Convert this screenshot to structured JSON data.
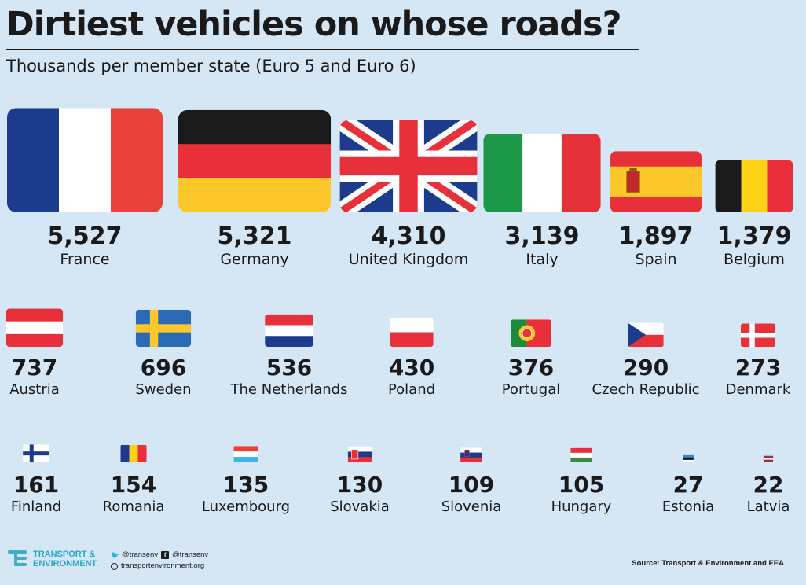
{
  "title": "Dirtiest vehicles on whose roads?",
  "subtitle": "Thousands per member state (Euro 5 and Euro 6)",
  "chart_data": {
    "type": "table",
    "title": "Dirtiest vehicles on whose roads?",
    "subtitle": "Thousands per member state (Euro 5 and Euro 6)",
    "categories": [
      "France",
      "Germany",
      "United Kingdom",
      "Italy",
      "Spain",
      "Belgium",
      "Austria",
      "Sweden",
      "The Netherlands",
      "Poland",
      "Portugal",
      "Czech Republic",
      "Denmark",
      "Finland",
      "Romania",
      "Luxembourg",
      "Slovakia",
      "Slovenia",
      "Hungary",
      "Estonia",
      "Latvia"
    ],
    "values": [
      5527,
      5321,
      4310,
      3139,
      1897,
      1379,
      737,
      696,
      536,
      430,
      376,
      290,
      273,
      161,
      154,
      135,
      130,
      109,
      105,
      27,
      22
    ],
    "value_labels": [
      "5,527",
      "5,321",
      "4,310",
      "3,139",
      "1,897",
      "1,379",
      "737",
      "696",
      "536",
      "430",
      "376",
      "290",
      "273",
      "161",
      "154",
      "135",
      "130",
      "109",
      "105",
      "27",
      "22"
    ],
    "flags": [
      "france-flag",
      "germany-flag",
      "uk-flag",
      "italy-flag",
      "spain-flag",
      "belgium-flag",
      "austria-flag",
      "sweden-flag",
      "netherlands-flag",
      "poland-flag",
      "portugal-flag",
      "czech-flag",
      "denmark-flag",
      "finland-flag",
      "romania-flag",
      "luxembourg-flag",
      "slovakia-flag",
      "slovenia-flag",
      "hungary-flag",
      "estonia-flag",
      "latvia-flag"
    ],
    "encoding": "flag area proportional to value"
  },
  "footer": {
    "logo_line1": "TRANSPORT &",
    "logo_line2": "ENVIRONMENT",
    "twitter": "@transenv",
    "facebook": "@transenv",
    "website": "transportenvironment.org",
    "source": "Source: Transport & Environment and EEA"
  },
  "colors": {
    "background": "#d5e6f4",
    "text": "#1a1a1a",
    "brand": "#2aa7c4"
  }
}
